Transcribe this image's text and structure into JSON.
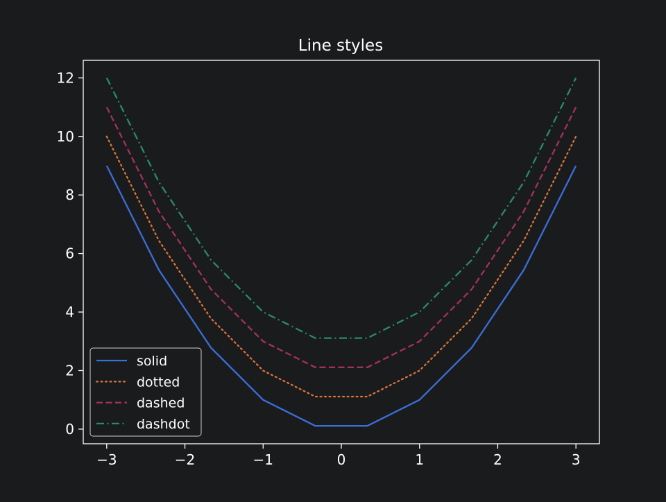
{
  "chart_data": {
    "type": "line",
    "title": "Line styles",
    "xlabel": "",
    "ylabel": "",
    "xlim": [
      -3.3,
      3.3
    ],
    "ylim": [
      -0.5,
      12.6
    ],
    "xticks": [
      -3,
      -2,
      -1,
      0,
      1,
      2,
      3
    ],
    "xtick_labels": [
      "−3",
      "−2",
      "−1",
      "0",
      "1",
      "2",
      "3"
    ],
    "yticks": [
      0,
      2,
      4,
      6,
      8,
      10,
      12
    ],
    "ytick_labels": [
      "0",
      "2",
      "4",
      "6",
      "8",
      "10",
      "12"
    ],
    "grid": false,
    "legend_position": "lower-left",
    "x": [
      -3,
      -2.333,
      -1.667,
      -1,
      -0.333,
      0.333,
      1,
      1.667,
      2.333,
      3
    ],
    "series": [
      {
        "name": "solid",
        "style": "solid",
        "color": "#3a6fd8",
        "values": [
          9,
          5.44,
          2.78,
          1,
          0.11,
          0.11,
          1,
          2.78,
          5.44,
          9
        ]
      },
      {
        "name": "dotted",
        "style": "dotted",
        "color": "#d8743a",
        "values": [
          10,
          6.44,
          3.78,
          2,
          1.11,
          1.11,
          2,
          3.78,
          6.44,
          10
        ]
      },
      {
        "name": "dashed",
        "style": "dashed",
        "color": "#a3325a",
        "values": [
          11,
          7.44,
          4.78,
          3,
          2.11,
          2.11,
          3,
          4.78,
          7.44,
          11
        ]
      },
      {
        "name": "dashdot",
        "style": "dashdot",
        "color": "#2a8a6c",
        "values": [
          12,
          8.44,
          5.78,
          4,
          3.11,
          3.11,
          4,
          5.78,
          8.44,
          12
        ]
      }
    ]
  }
}
